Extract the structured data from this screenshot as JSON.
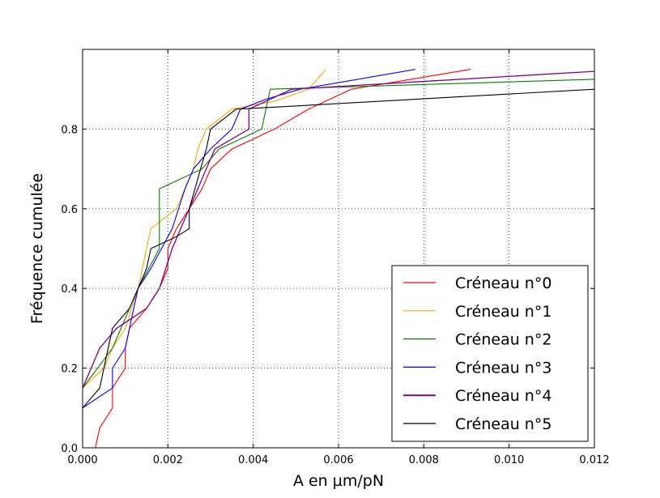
{
  "chart_data": {
    "type": "line",
    "xlabel": "A en µm/pN",
    "ylabel": "Fréquence cumulée",
    "xlim": [
      0,
      0.012
    ],
    "ylim": [
      0,
      1
    ],
    "xticks": [
      0,
      0.002,
      0.004,
      0.006,
      0.008,
      0.01,
      0.012
    ],
    "xtick_labels": [
      "0.000",
      "0.002",
      "0.004",
      "0.006",
      "0.008",
      "0.010",
      "0.012"
    ],
    "yticks": [
      0,
      0.2,
      0.4,
      0.6,
      0.8
    ],
    "ytick_labels": [
      "0.0",
      "0.2",
      "0.4",
      "0.6",
      "0.8"
    ],
    "grid": true,
    "legend_position": "lower-right",
    "series": [
      {
        "name": "Créneau n°0",
        "color": "#ff0000",
        "points": [
          [
            0.0003,
            0.0
          ],
          [
            0.0004,
            0.05
          ],
          [
            0.0007,
            0.1
          ],
          [
            0.0007,
            0.15
          ],
          [
            0.001,
            0.2
          ],
          [
            0.001,
            0.25
          ],
          [
            0.0011,
            0.3
          ],
          [
            0.0015,
            0.35
          ],
          [
            0.0018,
            0.4
          ],
          [
            0.002,
            0.45
          ],
          [
            0.002,
            0.5
          ],
          [
            0.0022,
            0.55
          ],
          [
            0.0025,
            0.6
          ],
          [
            0.0028,
            0.65
          ],
          [
            0.003,
            0.7
          ],
          [
            0.0035,
            0.75
          ],
          [
            0.0045,
            0.8
          ],
          [
            0.0053,
            0.85
          ],
          [
            0.0063,
            0.9
          ],
          [
            0.0091,
            0.95
          ]
        ]
      },
      {
        "name": "Créneau n°1",
        "color": "#ffa500",
        "points": [
          [
            0.0,
            0.15
          ],
          [
            0.0005,
            0.2
          ],
          [
            0.0007,
            0.25
          ],
          [
            0.001,
            0.3
          ],
          [
            0.0013,
            0.4
          ],
          [
            0.0015,
            0.5
          ],
          [
            0.0016,
            0.55
          ],
          [
            0.0022,
            0.6
          ],
          [
            0.0026,
            0.7
          ],
          [
            0.0027,
            0.75
          ],
          [
            0.0029,
            0.8
          ],
          [
            0.0035,
            0.85
          ],
          [
            0.0045,
            0.87
          ],
          [
            0.0053,
            0.9
          ],
          [
            0.0057,
            0.95
          ]
        ]
      },
      {
        "name": "Créneau n°2",
        "color": "#008000",
        "points": [
          [
            0.0,
            0.15
          ],
          [
            0.0007,
            0.25
          ],
          [
            0.0013,
            0.4
          ],
          [
            0.0018,
            0.5
          ],
          [
            0.0018,
            0.65
          ],
          [
            0.0028,
            0.7
          ],
          [
            0.0032,
            0.75
          ],
          [
            0.0042,
            0.8
          ],
          [
            0.0044,
            0.9
          ],
          [
            0.012,
            0.925
          ]
        ]
      },
      {
        "name": "Créneau n°3",
        "color": "#0000ff",
        "points": [
          [
            0.0,
            0.1
          ],
          [
            0.0007,
            0.15
          ],
          [
            0.0007,
            0.2
          ],
          [
            0.001,
            0.25
          ],
          [
            0.0011,
            0.3
          ],
          [
            0.0013,
            0.4
          ],
          [
            0.0016,
            0.45
          ],
          [
            0.0021,
            0.55
          ],
          [
            0.0024,
            0.65
          ],
          [
            0.0026,
            0.7
          ],
          [
            0.003,
            0.75
          ],
          [
            0.0035,
            0.8
          ],
          [
            0.0037,
            0.85
          ],
          [
            0.0043,
            0.875
          ],
          [
            0.0051,
            0.9
          ],
          [
            0.0078,
            0.95
          ]
        ]
      },
      {
        "name": "Créneau n°4",
        "color": "#800080",
        "points": [
          [
            0.0,
            0.15
          ],
          [
            0.0004,
            0.25
          ],
          [
            0.0008,
            0.3
          ],
          [
            0.0015,
            0.35
          ],
          [
            0.0018,
            0.4
          ],
          [
            0.0021,
            0.5
          ],
          [
            0.0023,
            0.55
          ],
          [
            0.0025,
            0.6
          ],
          [
            0.0029,
            0.7
          ],
          [
            0.0031,
            0.75
          ],
          [
            0.0039,
            0.8
          ],
          [
            0.0039,
            0.85
          ],
          [
            0.0049,
            0.9
          ],
          [
            0.012,
            0.945
          ]
        ]
      },
      {
        "name": "Créneau n°5",
        "color": "#000000",
        "points": [
          [
            0.0,
            0.1
          ],
          [
            0.0004,
            0.15
          ],
          [
            0.0005,
            0.2
          ],
          [
            0.0007,
            0.3
          ],
          [
            0.0011,
            0.35
          ],
          [
            0.0015,
            0.45
          ],
          [
            0.0016,
            0.5
          ],
          [
            0.0022,
            0.53
          ],
          [
            0.0025,
            0.55
          ],
          [
            0.0025,
            0.6
          ],
          [
            0.0029,
            0.75
          ],
          [
            0.003,
            0.8
          ],
          [
            0.0036,
            0.85
          ],
          [
            0.0045,
            0.855
          ],
          [
            0.012,
            0.9
          ]
        ]
      }
    ]
  }
}
